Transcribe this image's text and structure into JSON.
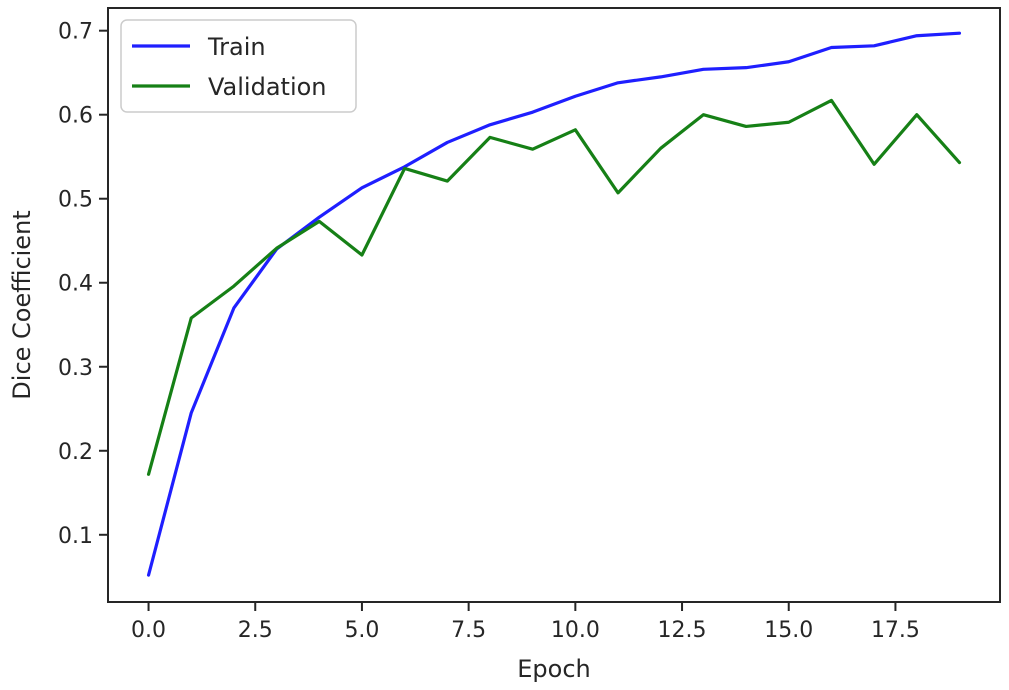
{
  "chart_data": {
    "type": "line",
    "title": "",
    "xlabel": "Epoch",
    "ylabel": "Dice Coefficient",
    "x": [
      0,
      1,
      2,
      3,
      4,
      5,
      6,
      7,
      8,
      9,
      10,
      11,
      12,
      13,
      14,
      15,
      16,
      17,
      18,
      19
    ],
    "series": [
      {
        "name": "Train",
        "color": "#1f1fff",
        "values": [
          0.052,
          0.245,
          0.37,
          0.44,
          0.478,
          0.513,
          0.538,
          0.567,
          0.588,
          0.603,
          0.622,
          0.638,
          0.645,
          0.654,
          0.656,
          0.663,
          0.68,
          0.682,
          0.694,
          0.697
        ]
      },
      {
        "name": "Validation",
        "color": "#168016",
        "values": [
          0.172,
          0.358,
          0.396,
          0.441,
          0.473,
          0.433,
          0.536,
          0.521,
          0.573,
          0.559,
          0.582,
          0.507,
          0.56,
          0.6,
          0.586,
          0.591,
          0.617,
          0.541,
          0.6,
          0.543
        ]
      }
    ],
    "xlim": [
      -0.95,
      19.95
    ],
    "ylim": [
      0.02,
      0.727
    ],
    "xticks": [
      0.0,
      2.5,
      5.0,
      7.5,
      10.0,
      12.5,
      15.0,
      17.5
    ],
    "xtick_labels": [
      "0.0",
      "2.5",
      "5.0",
      "7.5",
      "10.0",
      "12.5",
      "15.0",
      "17.5"
    ],
    "yticks": [
      0.1,
      0.2,
      0.3,
      0.4,
      0.5,
      0.6,
      0.7
    ],
    "ytick_labels": [
      "0.1",
      "0.2",
      "0.3",
      "0.4",
      "0.5",
      "0.6",
      "0.7"
    ],
    "grid": false,
    "legend_position": "top-left"
  }
}
